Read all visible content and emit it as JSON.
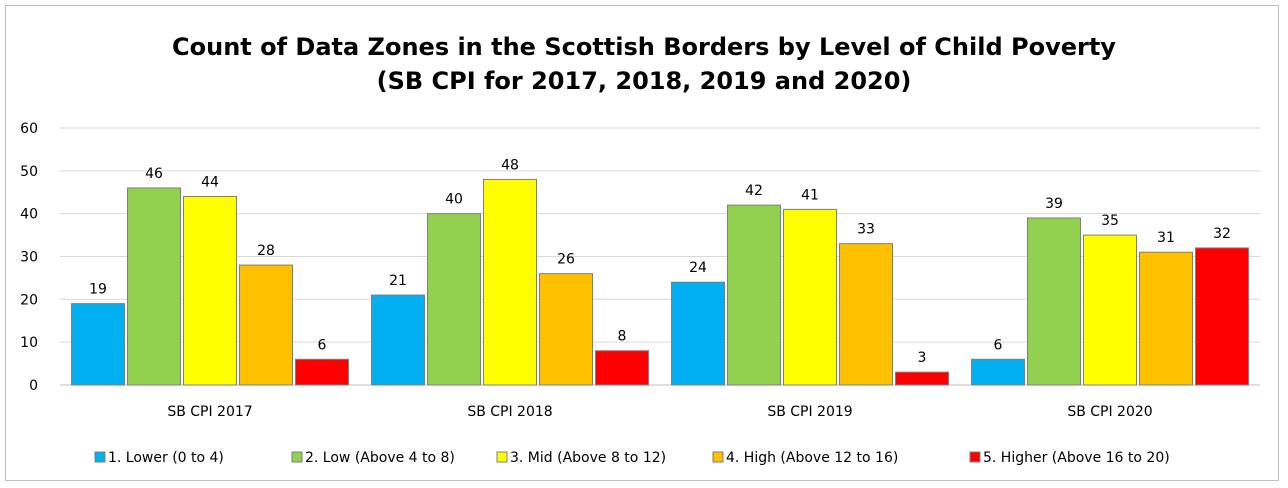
{
  "chart_data": {
    "type": "bar",
    "title": "Count of Data Zones in the Scottish Borders by Level of Child Poverty",
    "subtitle": "(SB CPI for 2017, 2018, 2019 and 2020)",
    "xlabel": "",
    "ylabel": "",
    "ylim": [
      0,
      60
    ],
    "yticks": [
      0,
      10,
      20,
      30,
      40,
      50,
      60
    ],
    "grid": true,
    "legend_position": "bottom",
    "categories": [
      "SB CPI 2017",
      "SB CPI 2018",
      "SB CPI 2019",
      "SB CPI 2020"
    ],
    "series": [
      {
        "name": "1. Lower (0 to  4)",
        "color": "#00b0f0",
        "values": [
          19,
          21,
          24,
          6
        ]
      },
      {
        "name": "2. Low (Above 4 to  8)",
        "color": "#92d050",
        "values": [
          46,
          40,
          42,
          39
        ]
      },
      {
        "name": "3. Mid (Above 8 to 12)",
        "color": "#ffff00",
        "values": [
          44,
          48,
          41,
          35
        ]
      },
      {
        "name": "4. High (Above 12 to  16)",
        "color": "#ffc000",
        "values": [
          28,
          26,
          33,
          31
        ]
      },
      {
        "name": "5. Higher (Above 16 to  20)",
        "color": "#ff0000",
        "values": [
          6,
          8,
          3,
          32
        ]
      }
    ]
  }
}
